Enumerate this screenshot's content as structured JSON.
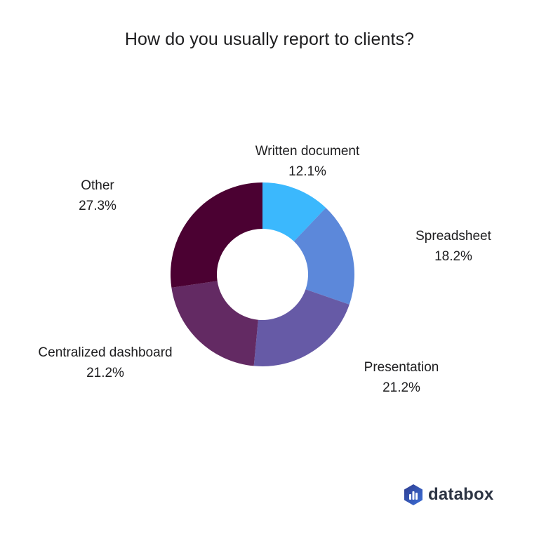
{
  "chart_data": {
    "type": "pie",
    "style": "donut",
    "title": "How do you usually report to clients?",
    "slices": [
      {
        "label": "Written document",
        "value": 12.1,
        "value_label": "12.1%",
        "color": "#3bb8fd"
      },
      {
        "label": "Spreadsheet",
        "value": 18.2,
        "value_label": "18.2%",
        "color": "#5c88da"
      },
      {
        "label": "Presentation",
        "value": 21.2,
        "value_label": "21.2%",
        "color": "#665aa6"
      },
      {
        "label": "Centralized dashboard",
        "value": 21.2,
        "value_label": "21.2%",
        "color": "#632a63"
      },
      {
        "label": "Other",
        "value": 27.3,
        "value_label": "27.3%",
        "color": "#4b0132"
      }
    ]
  },
  "brand": {
    "name": "databox",
    "logo_colors": [
      "#2f3c8f",
      "#3b6fd8"
    ]
  }
}
